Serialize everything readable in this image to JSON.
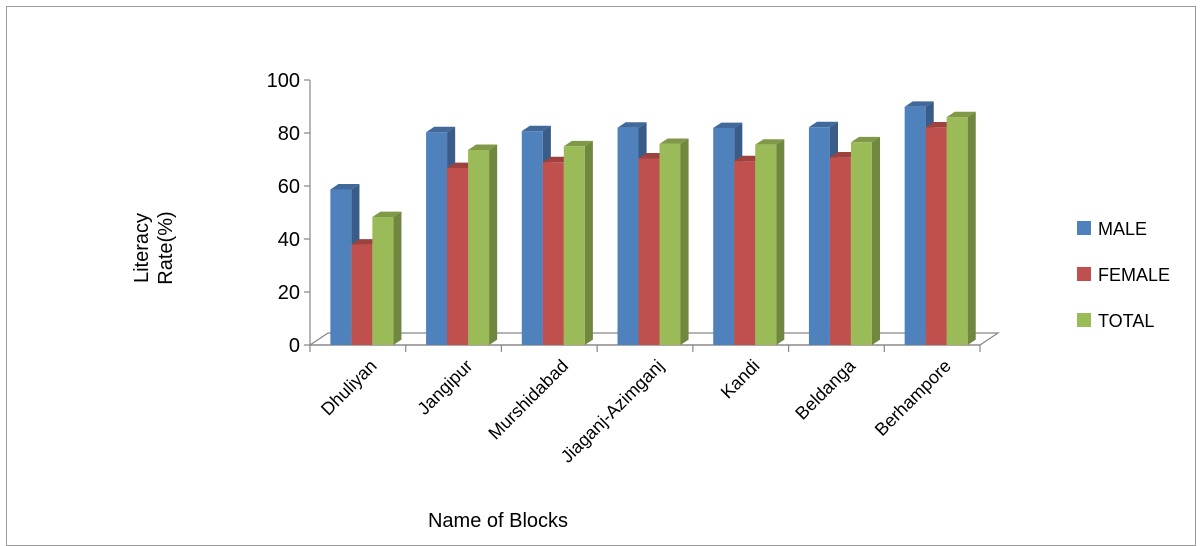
{
  "chart_data": {
    "type": "bar",
    "categories": [
      "Dhuliyan",
      "Jangipur",
      "Murshidabad",
      "Jiaganj-Azimganj",
      "Kandi",
      "Beldanga",
      "Berhampore"
    ],
    "series": [
      {
        "name": "MALE",
        "values": [
          58.7,
          80.3,
          80.7,
          82.0,
          81.9,
          82.2,
          89.9
        ],
        "color": "#4f81bd"
      },
      {
        "name": "FEMALE",
        "values": [
          37.9,
          66.8,
          69.0,
          70.4,
          69.4,
          70.8,
          82.1
        ],
        "color": "#c0504d"
      },
      {
        "name": "TOTAL",
        "values": [
          48.3,
          73.6,
          75.0,
          75.9,
          75.6,
          76.5,
          86.0
        ],
        "color": "#9bbb59"
      }
    ],
    "xlabel": "Name of Blocks",
    "ylabel": "Literacy Rate(%)",
    "ylabel_lines": [
      "Literacy",
      "Rate(%)"
    ],
    "ylim": [
      0,
      100
    ],
    "yticks": [
      "0",
      "20",
      "40",
      "60",
      "80",
      "100"
    ],
    "legend_position": "right",
    "grid": false
  }
}
